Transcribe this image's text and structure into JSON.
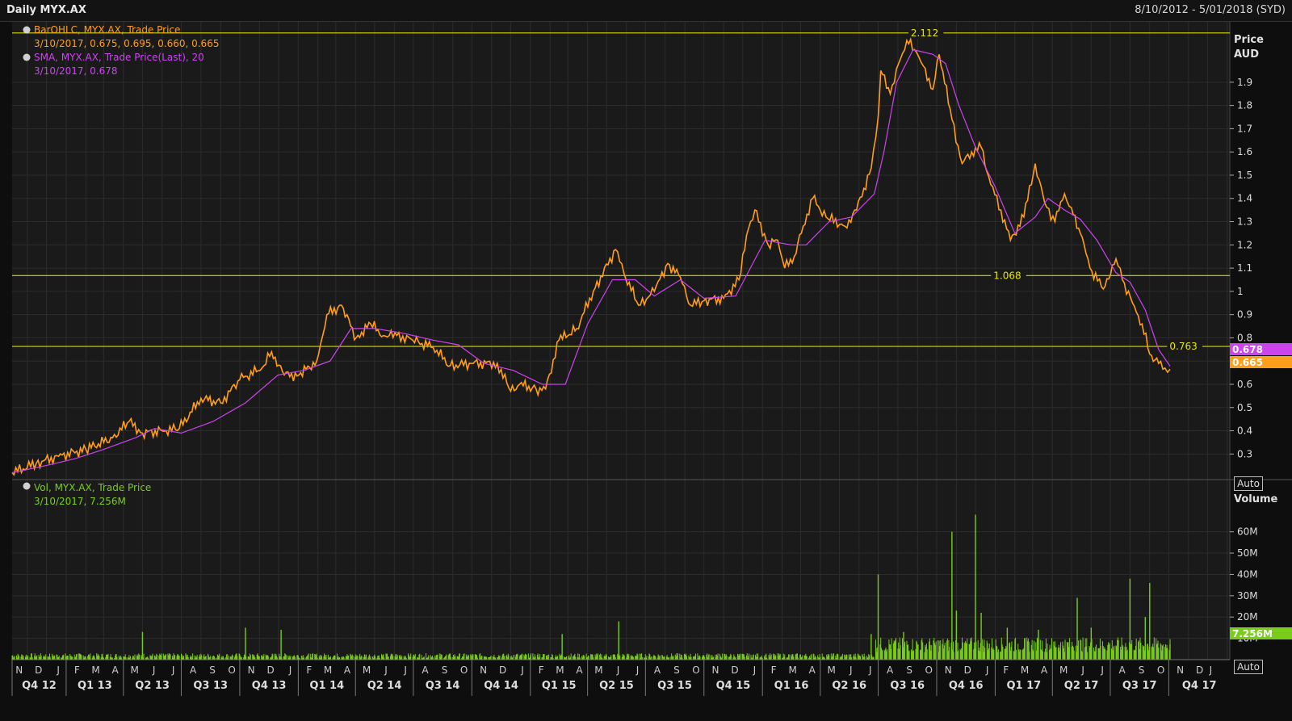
{
  "header": {
    "title": "Daily MYX.AX",
    "date_range": "8/10/2012 - 5/01/2018 (SYD)"
  },
  "legend": {
    "ohlc": {
      "label": "BarOHLC, MYX.AX, Trade Price",
      "values": "3/10/2017, 0.675, 0.695, 0.660, 0.665"
    },
    "sma": {
      "label": "SMA, MYX.AX, Trade Price(Last),  20",
      "values": "3/10/2017, 0.678"
    },
    "vol": {
      "label": "Vol, MYX.AX, Trade Price",
      "values": "3/10/2017, 7.256M"
    }
  },
  "price_axis": {
    "title": "Price",
    "unit": "AUD",
    "ticks": [
      "1.9",
      "1.8",
      "1.7",
      "1.6",
      "1.5",
      "1.4",
      "1.3",
      "1.2",
      "1.1",
      "1",
      "0.9",
      "0.8",
      "0.7",
      "0.6",
      "0.5",
      "0.4",
      "0.3"
    ],
    "auto_label": "Auto"
  },
  "volume_axis": {
    "title": "Volume",
    "ticks": [
      "60M",
      "50M",
      "40M",
      "30M",
      "20M",
      "10M"
    ],
    "auto_label": "Auto"
  },
  "badges": {
    "sma": "0.678",
    "price": "0.665",
    "volume": "7.256M"
  },
  "colors": {
    "background": "#1a1a1a",
    "grid": "#2c2c2c",
    "price": "#ff9e1b",
    "sma": "#cc44ee",
    "volume": "#7acc1a",
    "hline": "#d8d800"
  },
  "chart_data": {
    "type": "line",
    "title": "Daily MYX.AX",
    "ylabel": "Price AUD",
    "ylim": [
      0.19,
      2.16
    ],
    "hlines": [
      {
        "value": 2.112,
        "label": "2.112"
      },
      {
        "value": 1.068,
        "label": "1.068"
      },
      {
        "value": 0.763,
        "label": "0.763"
      }
    ],
    "month_labels": [
      "N",
      "D",
      "J",
      "F",
      "M",
      "A",
      "M",
      "J",
      "J",
      "A",
      "S",
      "O",
      "N",
      "D",
      "J",
      "F",
      "M",
      "A",
      "M",
      "J",
      "J",
      "A",
      "S",
      "O",
      "N",
      "D",
      "J",
      "F",
      "M",
      "A",
      "M",
      "J",
      "J",
      "A",
      "S",
      "O",
      "N",
      "D",
      "J",
      "F",
      "M",
      "A",
      "M",
      "J",
      "J",
      "A",
      "S",
      "O",
      "N",
      "D",
      "J",
      "F",
      "M",
      "A",
      "M",
      "J",
      "J",
      "A",
      "S",
      "O",
      "N",
      "D",
      "J"
    ],
    "quarter_labels": [
      "Q4 12",
      "Q1 13",
      "Q2 13",
      "Q3 13",
      "Q4 13",
      "Q1 14",
      "Q2 14",
      "Q3 14",
      "Q4 14",
      "Q1 15",
      "Q2 15",
      "Q3 15",
      "Q4 15",
      "Q1 16",
      "Q2 16",
      "Q3 16",
      "Q4 16",
      "Q1 17",
      "Q2 17",
      "Q3 17",
      "Q4 17"
    ],
    "series": [
      {
        "name": "MYX.AX Trade Price",
        "x": [
          "2012-10-08",
          "2012-11-15",
          "2012-12-20",
          "2013-02-01",
          "2013-03-15",
          "2013-04-10",
          "2013-05-01",
          "2013-06-01",
          "2013-06-28",
          "2013-08-01",
          "2013-09-01",
          "2013-10-01",
          "2013-11-05",
          "2013-11-20",
          "2013-12-10",
          "2014-01-02",
          "2014-01-30",
          "2014-02-15",
          "2014-03-10",
          "2014-04-02",
          "2014-04-25",
          "2014-05-15",
          "2014-06-05",
          "2014-06-30",
          "2014-08-01",
          "2014-08-28",
          "2014-09-30",
          "2014-11-10",
          "2014-12-01",
          "2014-12-15",
          "2015-01-10",
          "2015-01-25",
          "2015-02-15",
          "2015-03-15",
          "2015-04-10",
          "2015-05-15",
          "2015-05-28",
          "2015-06-20",
          "2015-07-15",
          "2015-08-05",
          "2015-08-25",
          "2015-09-10",
          "2015-10-01",
          "2015-11-01",
          "2015-11-25",
          "2015-12-10",
          "2015-12-20",
          "2016-01-10",
          "2016-01-25",
          "2016-02-05",
          "2016-02-20",
          "2016-03-05",
          "2016-03-20",
          "2016-04-10",
          "2016-05-10",
          "2016-05-28",
          "2016-06-20",
          "2016-07-01",
          "2016-07-05",
          "2016-07-20",
          "2016-08-05",
          "2016-08-15",
          "2016-08-30",
          "2016-09-10",
          "2016-09-25",
          "2016-10-05",
          "2016-10-25",
          "2016-11-10",
          "2016-11-25",
          "2016-12-10",
          "2016-12-25",
          "2017-01-10",
          "2017-01-25",
          "2017-02-15",
          "2017-03-05",
          "2017-03-20",
          "2017-04-05",
          "2017-04-20",
          "2017-05-01",
          "2017-05-15",
          "2017-05-30",
          "2017-06-20",
          "2017-07-10",
          "2017-07-20",
          "2017-08-05",
          "2017-08-20",
          "2017-09-01",
          "2017-09-15",
          "2017-09-25",
          "2017-10-03"
        ],
        "values": [
          0.22,
          0.26,
          0.29,
          0.32,
          0.37,
          0.44,
          0.39,
          0.4,
          0.41,
          0.54,
          0.52,
          0.62,
          0.67,
          0.74,
          0.64,
          0.64,
          0.7,
          0.9,
          0.94,
          0.8,
          0.86,
          0.81,
          0.81,
          0.79,
          0.76,
          0.68,
          0.69,
          0.69,
          0.57,
          0.6,
          0.58,
          0.58,
          0.79,
          0.84,
          1.0,
          1.18,
          1.08,
          0.94,
          1.0,
          1.12,
          1.06,
          0.94,
          0.96,
          0.97,
          1.05,
          1.27,
          1.35,
          1.2,
          1.22,
          1.1,
          1.15,
          1.28,
          1.4,
          1.32,
          1.28,
          1.35,
          1.53,
          1.75,
          1.95,
          1.85,
          2.0,
          2.08,
          2.03,
          1.97,
          1.87,
          2.02,
          1.74,
          1.55,
          1.6,
          1.62,
          1.46,
          1.35,
          1.22,
          1.32,
          1.55,
          1.38,
          1.3,
          1.42,
          1.36,
          1.25,
          1.1,
          1.01,
          1.14,
          1.05,
          0.95,
          0.86,
          0.73,
          0.69,
          0.67,
          0.665
        ]
      },
      {
        "name": "SMA 20",
        "x": [
          "2012-10-08",
          "2012-11-30",
          "2013-01-15",
          "2013-03-01",
          "2013-04-20",
          "2013-05-20",
          "2013-07-01",
          "2013-08-20",
          "2013-10-10",
          "2013-11-30",
          "2014-01-10",
          "2014-02-20",
          "2014-03-25",
          "2014-05-01",
          "2014-06-15",
          "2014-08-01",
          "2014-09-10",
          "2014-10-20",
          "2014-12-05",
          "2015-01-20",
          "2015-02-25",
          "2015-04-01",
          "2015-05-10",
          "2015-06-15",
          "2015-07-15",
          "2015-08-25",
          "2015-10-01",
          "2015-11-20",
          "2016-01-05",
          "2016-02-15",
          "2016-03-10",
          "2016-04-15",
          "2016-05-20",
          "2016-06-25",
          "2016-07-10",
          "2016-07-30",
          "2016-08-25",
          "2016-09-25",
          "2016-10-15",
          "2016-11-05",
          "2016-12-01",
          "2017-01-01",
          "2017-02-01",
          "2017-03-05",
          "2017-03-25",
          "2017-04-20",
          "2017-05-15",
          "2017-06-10",
          "2017-07-10",
          "2017-08-01",
          "2017-08-25",
          "2017-09-15",
          "2017-10-03"
        ],
        "values": [
          0.22,
          0.25,
          0.28,
          0.32,
          0.37,
          0.41,
          0.39,
          0.44,
          0.52,
          0.64,
          0.66,
          0.7,
          0.84,
          0.84,
          0.82,
          0.79,
          0.77,
          0.69,
          0.66,
          0.6,
          0.6,
          0.86,
          1.05,
          1.05,
          0.98,
          1.05,
          0.97,
          0.98,
          1.22,
          1.2,
          1.2,
          1.3,
          1.32,
          1.42,
          1.6,
          1.9,
          2.04,
          2.02,
          1.98,
          1.8,
          1.62,
          1.45,
          1.25,
          1.32,
          1.4,
          1.35,
          1.31,
          1.22,
          1.08,
          1.04,
          0.92,
          0.75,
          0.678
        ]
      }
    ],
    "volume": {
      "name": "Vol",
      "ylim": [
        0,
        72
      ],
      "unit": "M",
      "spikes": [
        {
          "x": "2013-05-01",
          "value": 13
        },
        {
          "x": "2013-10-10",
          "value": 15
        },
        {
          "x": "2013-12-05",
          "value": 14
        },
        {
          "x": "2015-02-20",
          "value": 12
        },
        {
          "x": "2015-05-20",
          "value": 18
        },
        {
          "x": "2016-06-20",
          "value": 12
        },
        {
          "x": "2016-07-01",
          "value": 40
        },
        {
          "x": "2016-08-10",
          "value": 13
        },
        {
          "x": "2016-10-25",
          "value": 60
        },
        {
          "x": "2016-11-01",
          "value": 23
        },
        {
          "x": "2016-12-01",
          "value": 68
        },
        {
          "x": "2016-12-10",
          "value": 22
        },
        {
          "x": "2017-01-20",
          "value": 15
        },
        {
          "x": "2017-03-10",
          "value": 14
        },
        {
          "x": "2017-05-10",
          "value": 29
        },
        {
          "x": "2017-06-01",
          "value": 15
        },
        {
          "x": "2017-08-01",
          "value": 38
        },
        {
          "x": "2017-08-25",
          "value": 20
        },
        {
          "x": "2017-09-01",
          "value": 36
        },
        {
          "x": "2017-10-03",
          "value": 7.256
        }
      ]
    }
  }
}
